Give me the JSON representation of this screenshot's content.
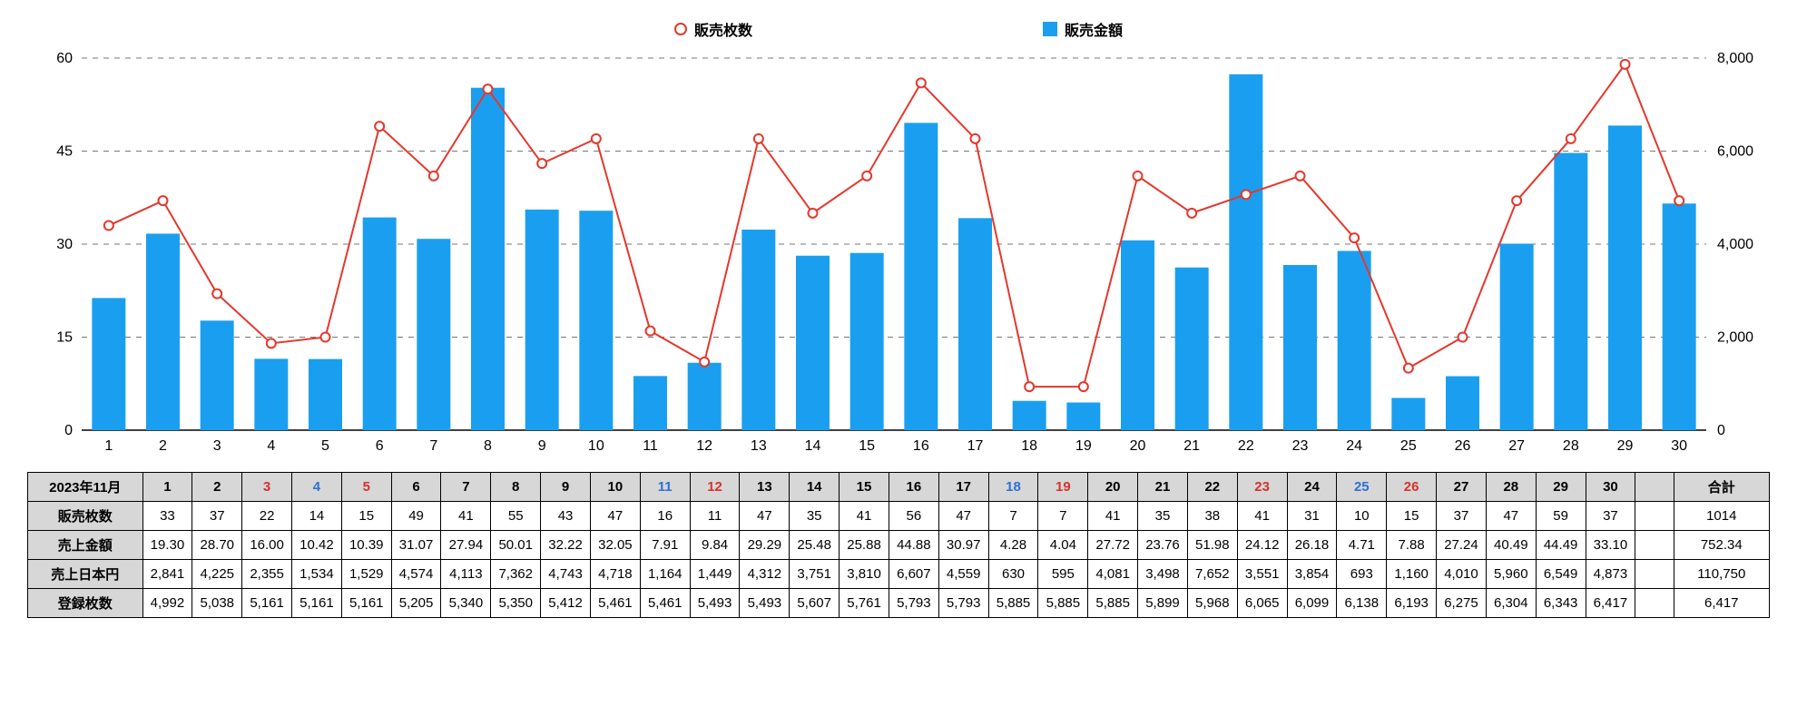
{
  "legend": {
    "line_label": "販売枚数",
    "bar_label": "販売金額"
  },
  "chart": {
    "bar_color": "#1a9ff0",
    "line_color": "#e5372c",
    "grid_color": "#777777",
    "background": "#ffffff",
    "y_left": {
      "min": 0,
      "max": 60,
      "step": 15
    },
    "y_right": {
      "min": 0,
      "max": 8000,
      "step": 2000
    },
    "days": [
      1,
      2,
      3,
      4,
      5,
      6,
      7,
      8,
      9,
      10,
      11,
      12,
      13,
      14,
      15,
      16,
      17,
      18,
      19,
      20,
      21,
      22,
      23,
      24,
      25,
      26,
      27,
      28,
      29,
      30
    ],
    "line_values": [
      33,
      37,
      22,
      14,
      15,
      49,
      41,
      55,
      43,
      47,
      16,
      11,
      47,
      35,
      41,
      56,
      47,
      7,
      7,
      41,
      35,
      38,
      41,
      31,
      10,
      15,
      37,
      47,
      59,
      37
    ],
    "bar_values": [
      2841,
      4225,
      2355,
      1534,
      1529,
      4574,
      4113,
      7362,
      4743,
      4718,
      1164,
      1449,
      4312,
      3751,
      3810,
      6607,
      4559,
      630,
      595,
      4081,
      3498,
      7652,
      3551,
      3854,
      693,
      1160,
      4010,
      5960,
      6549,
      4873
    ]
  },
  "table": {
    "period_label": "2023年11月",
    "total_label": "合計",
    "rows": [
      {
        "label": "販売枚数",
        "cells": [
          "33",
          "37",
          "22",
          "14",
          "15",
          "49",
          "41",
          "55",
          "43",
          "47",
          "16",
          "11",
          "47",
          "35",
          "41",
          "56",
          "47",
          "7",
          "7",
          "41",
          "35",
          "38",
          "41",
          "31",
          "10",
          "15",
          "37",
          "47",
          "59",
          "37"
        ],
        "total": "1014"
      },
      {
        "label": "売上金額",
        "cells": [
          "19.30",
          "28.70",
          "16.00",
          "10.42",
          "10.39",
          "31.07",
          "27.94",
          "50.01",
          "32.22",
          "32.05",
          "7.91",
          "9.84",
          "29.29",
          "25.48",
          "25.88",
          "44.88",
          "30.97",
          "4.28",
          "4.04",
          "27.72",
          "23.76",
          "51.98",
          "24.12",
          "26.18",
          "4.71",
          "7.88",
          "27.24",
          "40.49",
          "44.49",
          "33.10"
        ],
        "total": "752.34"
      },
      {
        "label": "売上日本円",
        "cells": [
          "2,841",
          "4,225",
          "2,355",
          "1,534",
          "1,529",
          "4,574",
          "4,113",
          "7,362",
          "4,743",
          "4,718",
          "1,164",
          "1,449",
          "4,312",
          "3,751",
          "3,810",
          "6,607",
          "4,559",
          "630",
          "595",
          "4,081",
          "3,498",
          "7,652",
          "3,551",
          "3,854",
          "693",
          "1,160",
          "4,010",
          "5,960",
          "6,549",
          "4,873"
        ],
        "total": "110,750"
      },
      {
        "label": "登録枚数",
        "cells": [
          "4,992",
          "5,038",
          "5,161",
          "5,161",
          "5,161",
          "5,205",
          "5,340",
          "5,350",
          "5,412",
          "5,461",
          "5,461",
          "5,493",
          "5,493",
          "5,607",
          "5,761",
          "5,793",
          "5,793",
          "5,885",
          "5,885",
          "5,885",
          "5,899",
          "5,968",
          "6,065",
          "6,099",
          "6,138",
          "6,193",
          "6,275",
          "6,304",
          "6,343",
          "6,417"
        ],
        "total": "6,417"
      }
    ],
    "day_colors": {
      "3": "red",
      "4": "blue",
      "5": "red",
      "11": "blue",
      "12": "red",
      "18": "blue",
      "19": "red",
      "23": "red",
      "25": "blue",
      "26": "red"
    }
  }
}
